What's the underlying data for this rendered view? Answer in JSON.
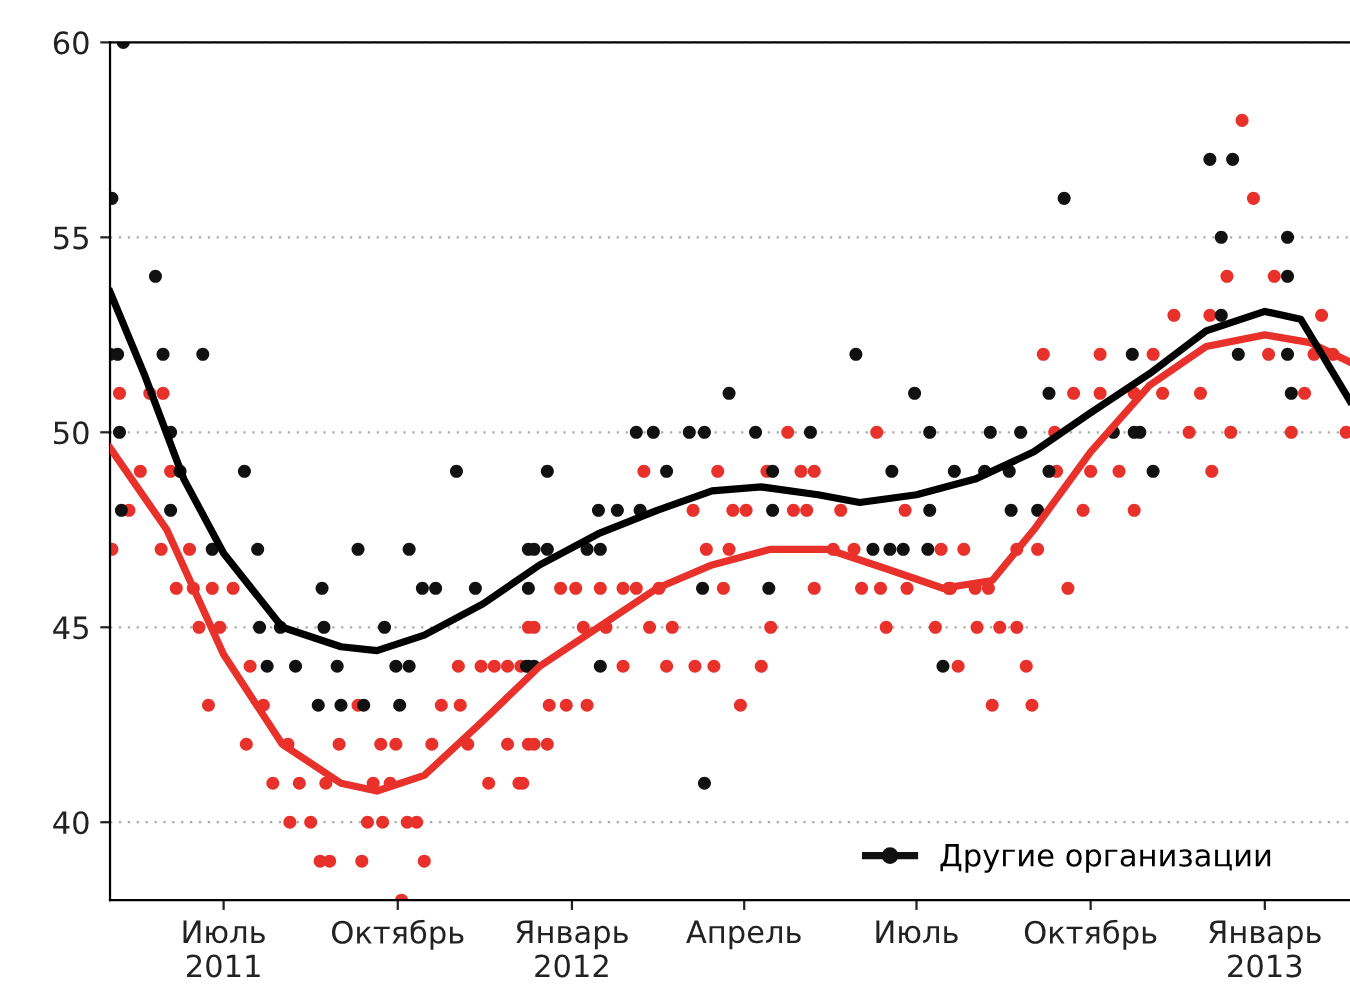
{
  "chart_data": {
    "type": "scatter",
    "xlim": [
      "2011-05-02",
      "2013-02-15"
    ],
    "ylim": [
      38,
      60
    ],
    "xticks": [
      {
        "value": "2011-07-01",
        "label": "Июль\n2011"
      },
      {
        "value": "2011-10-01",
        "label": "Октябрь"
      },
      {
        "value": "2012-01-01",
        "label": "Январь\n2012"
      },
      {
        "value": "2012-04-01",
        "label": "Апрель"
      },
      {
        "value": "2012-07-01",
        "label": "Июль"
      },
      {
        "value": "2012-10-01",
        "label": "Октябрь"
      },
      {
        "value": "2013-01-01",
        "label": "Январь\n2013"
      }
    ],
    "yticks": [
      40,
      45,
      50,
      55,
      60
    ],
    "grid": "y",
    "legend": "bottom right",
    "marker": "circle",
    "series": [
      {
        "color": "#e8312a",
        "x": [
          "2011-05-03",
          "2011-05-29",
          "2011-06-13",
          "2011-05-07",
          "2011-05-23",
          "2011-05-30",
          "2011-05-18",
          "2011-06-03",
          "2011-05-12",
          "2011-06-06",
          "2011-06-15",
          "2011-06-25",
          "2011-07-06",
          "2011-06-18",
          "2011-06-29",
          "2011-06-23",
          "2011-07-22",
          "2011-07-13",
          "2011-08-04",
          "2011-07-15",
          "2011-07-27",
          "2011-08-10",
          "2011-08-24",
          "2011-08-05",
          "2011-08-16",
          "2011-08-21",
          "2011-08-26",
          "2011-09-12",
          "2011-10-15",
          "2011-08-31",
          "2011-09-22",
          "2011-09-30",
          "2011-10-19",
          "2011-09-18",
          "2011-09-27",
          "2011-09-15",
          "2011-09-23",
          "2011-10-06",
          "2011-10-11",
          "2011-10-03",
          "2011-09-10",
          "2011-10-24",
          "2011-11-03",
          "2011-11-02",
          "2011-11-14",
          "2011-11-21",
          "2011-11-28",
          "2011-12-05",
          "2011-11-07",
          "2011-11-28",
          "2011-12-09",
          "2011-11-18",
          "2011-12-04",
          "2011-12-09",
          "2011-12-06",
          "2011-12-12",
          "2011-12-19",
          "2011-12-20",
          "2011-12-29",
          "2012-01-09",
          "2011-12-12",
          "2011-12-26",
          "2012-01-03",
          "2012-01-16",
          "2012-01-28",
          "2012-02-04",
          "2012-02-16",
          "2012-01-07",
          "2012-01-19",
          "2012-02-11",
          "2012-02-23",
          "2012-01-28",
          "2012-02-20",
          "2012-03-06",
          "2012-03-16",
          "2012-04-10",
          "2012-03-30",
          "2012-02-08",
          "2012-03-18",
          "2012-04-13",
          "2012-05-01",
          "2012-05-08",
          "2012-03-05",
          "2012-03-26",
          "2012-04-02",
          "2012-04-27",
          "2012-05-04",
          "2012-05-22",
          "2012-06-25",
          "2012-03-12",
          "2012-03-24",
          "2012-03-21",
          "2012-05-08",
          "2012-06-02",
          "2012-06-12",
          "2012-06-26",
          "2012-07-18",
          "2012-04-15",
          "2012-06-15",
          "2012-07-11",
          "2012-04-24",
          "2012-06-10",
          "2012-05-18",
          "2012-05-29",
          "2012-07-14",
          "2012-07-26",
          "2012-08-23",
          "2012-09-03",
          "2012-07-19",
          "2012-08-01",
          "2012-08-08",
          "2012-08-02",
          "2012-08-14",
          "2012-08-23",
          "2012-07-23",
          "2012-08-28",
          "2012-08-10",
          "2012-08-31",
          "2012-09-19",
          "2012-09-06",
          "2012-09-12",
          "2012-09-13",
          "2012-09-22",
          "2012-10-06",
          "2012-10-24",
          "2012-11-08",
          "2012-11-28",
          "2012-09-27",
          "2012-10-24",
          "2012-10-01",
          "2012-10-16",
          "2012-10-06",
          "2012-11-03",
          "2012-11-22",
          "2012-12-14",
          "2013-01-15",
          "2013-02-13",
          "2012-12-04",
          "2012-11-14",
          "2012-12-03",
          "2013-01-31",
          "2012-12-12",
          "2013-01-06",
          "2012-12-20",
          "2012-12-26",
          "2013-01-03",
          "2013-01-27",
          "2013-02-06",
          "2013-01-22"
        ],
        "values": [
          47,
          47,
          47,
          51,
          51,
          51,
          49,
          49,
          48,
          46,
          46,
          46,
          46,
          45,
          45,
          43,
          43,
          42,
          42,
          44,
          41,
          41,
          41,
          40,
          40,
          39,
          39,
          39,
          39,
          42,
          42,
          42,
          42,
          41,
          41,
          40,
          40,
          40,
          40,
          38,
          43,
          43,
          43,
          44,
          44,
          44,
          44,
          44,
          42,
          42,
          42,
          41,
          41,
          45,
          41,
          42,
          42,
          43,
          43,
          43,
          45,
          46,
          46,
          46,
          46,
          46,
          46,
          45,
          45,
          45,
          45,
          44,
          44,
          44,
          44,
          44,
          43,
          49,
          49,
          49,
          49,
          49,
          48,
          48,
          48,
          48,
          48,
          48,
          48,
          47,
          47,
          46,
          46,
          46,
          46,
          46,
          46,
          45,
          45,
          45,
          50,
          50,
          47,
          47,
          47,
          47,
          47,
          47,
          46,
          46,
          46,
          45,
          45,
          45,
          44,
          44,
          43,
          43,
          46,
          52,
          50,
          49,
          51,
          51,
          51,
          51,
          51,
          48,
          48,
          49,
          49,
          52,
          52,
          50,
          50,
          50,
          50,
          49,
          53,
          53,
          53,
          54,
          54,
          58,
          56,
          52,
          52,
          52,
          51
        ]
      },
      {
        "name": "Другие организации",
        "color": "#111111",
        "x": [
          "2011-05-09",
          "2011-05-03",
          "2011-05-26",
          "2011-05-02",
          "2011-05-06",
          "2011-05-30",
          "2011-06-20",
          "2011-05-07",
          "2011-06-03",
          "2011-06-08",
          "2011-07-12",
          "2011-05-08",
          "2011-06-03",
          "2011-06-25",
          "2011-07-19",
          "2011-08-22",
          "2011-07-20",
          "2011-07-31",
          "2011-08-23",
          "2011-07-24",
          "2011-08-08",
          "2011-08-30",
          "2011-09-30",
          "2011-10-07",
          "2011-08-20",
          "2011-09-01",
          "2011-09-13",
          "2011-10-02",
          "2011-09-10",
          "2011-10-07",
          "2011-09-24",
          "2011-10-14",
          "2011-10-21",
          "2011-11-11",
          "2011-11-01",
          "2011-12-09",
          "2011-12-09",
          "2011-12-09",
          "2011-12-19",
          "2011-12-12",
          "2011-12-19",
          "2011-12-08",
          "2011-12-12",
          "2012-01-09",
          "2012-01-16",
          "2012-01-16",
          "2012-01-15",
          "2012-01-25",
          "2012-02-06",
          "2012-02-20",
          "2012-02-04",
          "2012-02-13",
          "2012-03-03",
          "2012-03-11",
          "2012-03-24",
          "2012-04-07",
          "2012-04-16",
          "2012-04-16",
          "2012-03-10",
          "2012-04-14",
          "2012-03-11",
          "2012-05-06",
          "2012-05-30",
          "2012-06-30",
          "2012-07-08",
          "2012-06-18",
          "2012-07-08",
          "2012-06-08",
          "2012-06-17",
          "2012-06-24",
          "2012-07-07",
          "2012-07-15",
          "2012-07-21",
          "2012-08-06",
          "2012-08-19",
          "2012-08-09",
          "2012-08-25",
          "2012-08-20",
          "2012-09-03",
          "2012-09-09",
          "2012-09-09",
          "2012-09-17",
          "2012-10-13",
          "2012-10-24",
          "2012-10-27",
          "2012-10-23",
          "2012-11-03",
          "2012-12-03",
          "2012-12-15",
          "2012-12-09",
          "2013-01-13",
          "2012-12-09",
          "2012-12-18",
          "2013-01-13",
          "2013-01-13",
          "2013-01-15"
        ],
        "values": [
          60,
          56,
          54,
          52,
          52,
          52,
          52,
          50,
          50,
          49,
          49,
          48,
          48,
          47,
          47,
          46,
          45,
          45,
          45,
          44,
          44,
          44,
          44,
          44,
          43,
          43,
          43,
          43,
          47,
          47,
          45,
          46,
          46,
          46,
          49,
          47,
          46,
          44,
          49,
          47,
          47,
          44,
          44,
          47,
          47,
          44,
          48,
          48,
          48,
          49,
          50,
          50,
          50,
          50,
          51,
          50,
          49,
          48,
          46,
          46,
          41,
          50,
          52,
          51,
          50,
          49,
          48,
          47,
          47,
          47,
          47,
          44,
          49,
          49,
          49,
          50,
          50,
          48,
          48,
          51,
          49,
          56,
          50,
          50,
          50,
          52,
          49,
          57,
          57,
          55,
          55,
          53,
          52,
          54,
          52,
          51
        ]
      },
      {
        "type": "line",
        "marker": "none",
        "color": "#e8312a",
        "x": [
          "2011-05-02",
          "2011-06-01",
          "2011-07-01",
          "2011-08-01",
          "2011-09-01",
          "2011-09-20",
          "2011-10-15",
          "2011-11-15",
          "2011-12-15",
          "2012-01-15",
          "2012-02-15",
          "2012-03-15",
          "2012-04-15",
          "2012-05-15",
          "2012-06-15",
          "2012-07-15",
          "2012-08-10",
          "2012-09-01",
          "2012-10-01",
          "2012-11-01",
          "2012-12-01",
          "2013-01-01",
          "2013-01-25",
          "2013-02-15"
        ],
        "values": [
          49.6,
          47.5,
          44.3,
          42.0,
          41.0,
          40.8,
          41.2,
          42.6,
          44.0,
          45.0,
          46.0,
          46.6,
          47.0,
          47.0,
          46.5,
          46.0,
          46.2,
          47.5,
          49.5,
          51.2,
          52.2,
          52.5,
          52.3,
          51.8
        ]
      },
      {
        "type": "line",
        "marker": "none",
        "color": "#000000",
        "x": [
          "2011-05-02",
          "2011-05-20",
          "2011-06-10",
          "2011-07-01",
          "2011-08-01",
          "2011-09-01",
          "2011-09-20",
          "2011-10-15",
          "2011-11-15",
          "2011-12-15",
          "2012-01-15",
          "2012-02-15",
          "2012-03-15",
          "2012-04-10",
          "2012-05-10",
          "2012-06-01",
          "2012-07-01",
          "2012-08-01",
          "2012-09-01",
          "2012-10-01",
          "2012-11-01",
          "2012-12-01",
          "2013-01-01",
          "2013-01-20",
          "2013-02-15"
        ],
        "values": [
          53.6,
          51.5,
          48.8,
          46.9,
          45.0,
          44.5,
          44.4,
          44.8,
          45.6,
          46.6,
          47.4,
          48.0,
          48.5,
          48.6,
          48.4,
          48.2,
          48.4,
          48.8,
          49.5,
          50.5,
          51.5,
          52.6,
          53.1,
          52.9,
          50.8
        ]
      }
    ]
  }
}
